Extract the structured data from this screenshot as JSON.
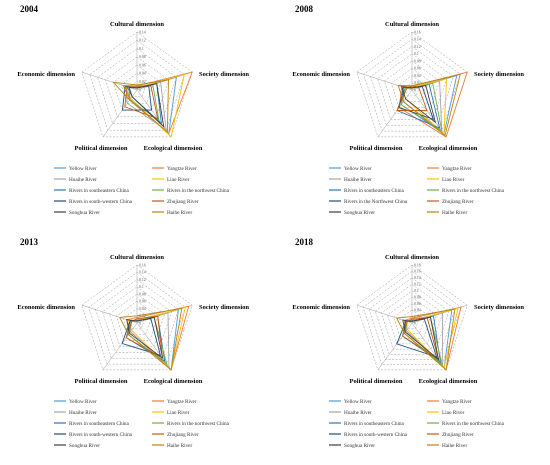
{
  "figure": {
    "dimensions": [
      "Cultural dimension",
      "Society dimension",
      "Ecological dimension",
      "Political dimension",
      "Economic dimension"
    ],
    "series_names": [
      "Yellow River",
      "Yangtze River",
      "Huaihe River",
      "Liao River",
      "Rivers in southeastern China",
      "Rivers in the northwest China",
      "Rivers in south-western China",
      "Zhujiang River",
      "Songhua River",
      "Haihe River"
    ],
    "colors": {
      "Yellow River": "#4e9bd6",
      "Yangtze River": "#ed7d31",
      "Huaihe River": "#a5a5a5",
      "Liao River": "#ffc000",
      "Rivers in southeastern China": "#2e75b6",
      "Rivers in the northwest China": "#70ad47",
      "Rivers in south-western China": "#1f4e79",
      "Rivers in the Northwest China": "#1f4e79",
      "Zhujiang River": "#c55a11",
      "Songhua River": "#404040",
      "Haihe River": "#b8860b"
    }
  },
  "chart_data": [
    {
      "type": "radar",
      "title": "2004",
      "axes": [
        "Cultural dimension",
        "Society dimension",
        "Ecological dimension",
        "Political dimension",
        "Economic dimension"
      ],
      "ticks": [
        "0",
        "0.02",
        "0.04",
        "0.06",
        "0.08",
        "0.1",
        "0.12",
        "0.14"
      ],
      "rmax": 0.14,
      "legend": [
        "Yellow River",
        "Yangtze River",
        "Huaihe River",
        "Liao River",
        "Rivers in southeastern China",
        "Rivers in the northwest China",
        "Rivers in south-western China",
        "Zhujiang River",
        "Songhua River",
        "Haihe River"
      ],
      "series": [
        {
          "name": "Yellow River",
          "values": [
            0.005,
            0.1,
            0.13,
            0.028,
            0.03
          ]
        },
        {
          "name": "Yangtze River",
          "values": [
            0.01,
            0.14,
            0.13,
            0.03,
            0.035
          ]
        },
        {
          "name": "Huaihe River",
          "values": [
            0.008,
            0.06,
            0.12,
            0.04,
            0.028
          ]
        },
        {
          "name": "Liao River",
          "values": [
            0.006,
            0.12,
            0.14,
            0.025,
            0.03
          ]
        },
        {
          "name": "Rivers in southeastern China",
          "values": [
            0.005,
            0.05,
            0.1,
            0.02,
            0.025
          ]
        },
        {
          "name": "Rivers in the northwest China",
          "values": [
            0.004,
            0.04,
            0.09,
            0.03,
            0.02
          ]
        },
        {
          "name": "Rivers in south-western China",
          "values": [
            0.006,
            0.03,
            0.06,
            0.06,
            0.03
          ]
        },
        {
          "name": "Zhujiang River",
          "values": [
            0.007,
            0.035,
            0.085,
            0.05,
            0.025
          ]
        },
        {
          "name": "Songhua River",
          "values": [
            0.005,
            0.05,
            0.11,
            0.02,
            0.02
          ]
        },
        {
          "name": "Haihe River",
          "values": [
            0.012,
            0.08,
            0.125,
            0.03,
            0.06
          ]
        }
      ]
    },
    {
      "type": "radar",
      "title": "2008",
      "axes": [
        "Cultural dimension",
        "Society dimension",
        "Ecological dimension",
        "Political dimension",
        "Economic dimension"
      ],
      "ticks": [
        "0",
        "0.02",
        "0.04",
        "0.06",
        "0.08",
        "0.1",
        "0.12",
        "0.14",
        "0.16"
      ],
      "rmax": 0.16,
      "legend": [
        "Yellow River",
        "Yangtze River",
        "Huaihe River",
        "Liao River",
        "Rivers in southeastern China",
        "Rivers in the northwest China",
        "Rivers in the Northwest China",
        "Zhujiang River",
        "Songhua River",
        "Haihe River"
      ],
      "series": [
        {
          "name": "Yellow River",
          "values": [
            0.006,
            0.13,
            0.15,
            0.05,
            0.02
          ]
        },
        {
          "name": "Yangtze River",
          "values": [
            0.01,
            0.16,
            0.16,
            0.06,
            0.03
          ]
        },
        {
          "name": "Huaihe River",
          "values": [
            0.005,
            0.08,
            0.14,
            0.04,
            0.025
          ]
        },
        {
          "name": "Liao River",
          "values": [
            0.007,
            0.1,
            0.15,
            0.03,
            0.03
          ]
        },
        {
          "name": "Rivers in southeastern China",
          "values": [
            0.005,
            0.05,
            0.13,
            0.07,
            0.02
          ]
        },
        {
          "name": "Rivers in the northwest China",
          "values": [
            0.004,
            0.06,
            0.14,
            0.05,
            0.02
          ]
        },
        {
          "name": "Rivers in the Northwest China",
          "values": [
            0.006,
            0.03,
            0.1,
            0.06,
            0.025
          ]
        },
        {
          "name": "Zhujiang River",
          "values": [
            0.012,
            0.02,
            0.07,
            0.07,
            0.015
          ]
        },
        {
          "name": "Songhua River",
          "values": [
            0.006,
            0.04,
            0.11,
            0.03,
            0.03
          ]
        },
        {
          "name": "Haihe River",
          "values": [
            0.012,
            0.14,
            0.155,
            0.04,
            0.04
          ]
        }
      ]
    },
    {
      "type": "radar",
      "title": "2013",
      "axes": [
        "Cultural dimension",
        "Society dimension",
        "Ecological dimension",
        "Political dimension",
        "Economic dimension"
      ],
      "ticks": [
        "0",
        "0.02",
        "0.04",
        "0.06",
        "0.08",
        "0.1",
        "0.12",
        "0.14",
        "0.16"
      ],
      "rmax": 0.16,
      "legend": [
        "Yellow River",
        "Yangtze River",
        "Huaihe River",
        "Liao River",
        "Rivers in southeastern China",
        "Rivers in the northwest China",
        "Rivers in south-western China",
        "Zhujiang River",
        "Songhua River",
        "Haihe River"
      ],
      "series": [
        {
          "name": "Yellow River",
          "values": [
            0.008,
            0.12,
            0.16,
            0.03,
            0.02
          ]
        },
        {
          "name": "Yangtze River",
          "values": [
            0.015,
            0.15,
            0.16,
            0.03,
            0.03
          ]
        },
        {
          "name": "Huaihe River",
          "values": [
            0.006,
            0.09,
            0.15,
            0.03,
            0.02
          ]
        },
        {
          "name": "Liao River",
          "values": [
            0.006,
            0.14,
            0.16,
            0.025,
            0.025
          ]
        },
        {
          "name": "Rivers in southeastern China",
          "values": [
            0.005,
            0.06,
            0.13,
            0.05,
            0.02
          ]
        },
        {
          "name": "Rivers in the northwest China",
          "values": [
            0.005,
            0.05,
            0.14,
            0.04,
            0.015
          ]
        },
        {
          "name": "Rivers in south-western China",
          "values": [
            0.006,
            0.04,
            0.11,
            0.07,
            0.02
          ]
        },
        {
          "name": "Zhujiang River",
          "values": [
            0.012,
            0.06,
            0.12,
            0.05,
            0.015
          ]
        },
        {
          "name": "Songhua River",
          "values": [
            0.005,
            0.05,
            0.12,
            0.035,
            0.03
          ]
        },
        {
          "name": "Haihe River",
          "values": [
            0.02,
            0.13,
            0.16,
            0.04,
            0.05
          ]
        }
      ]
    },
    {
      "type": "radar",
      "title": "2018",
      "axes": [
        "Cultural dimension",
        "Society dimension",
        "Ecological dimension",
        "Political dimension",
        "Economic dimension"
      ],
      "ticks": [
        "0",
        "0.02",
        "0.04",
        "0.06",
        "0.08",
        "0.1",
        "0.12",
        "0.14",
        "0.16",
        "0.18"
      ],
      "rmax": 0.18,
      "legend": [
        "Yellow River",
        "Yangtze River",
        "Huaihe River",
        "Liao River",
        "Rivers in southeastern China",
        "Rivers in the northwest China",
        "Rivers in south-western China",
        "Zhujiang River",
        "Songhua River",
        "Haihe River"
      ],
      "series": [
        {
          "name": "Yellow River",
          "values": [
            0.008,
            0.13,
            0.17,
            0.03,
            0.02
          ]
        },
        {
          "name": "Yangtze River",
          "values": [
            0.015,
            0.16,
            0.18,
            0.03,
            0.025
          ]
        },
        {
          "name": "Huaihe River",
          "values": [
            0.006,
            0.1,
            0.16,
            0.03,
            0.02
          ]
        },
        {
          "name": "Liao River",
          "values": [
            0.006,
            0.15,
            0.17,
            0.025,
            0.02
          ]
        },
        {
          "name": "Rivers in southeastern China",
          "values": [
            0.005,
            0.07,
            0.15,
            0.05,
            0.02
          ]
        },
        {
          "name": "Rivers in the northwest China",
          "values": [
            0.005,
            0.06,
            0.16,
            0.04,
            0.015
          ]
        },
        {
          "name": "Rivers in south-western China",
          "values": [
            0.006,
            0.04,
            0.13,
            0.08,
            0.02
          ]
        },
        {
          "name": "Zhujiang River",
          "values": [
            0.012,
            0.05,
            0.14,
            0.05,
            0.015
          ]
        },
        {
          "name": "Songhua River",
          "values": [
            0.005,
            0.06,
            0.14,
            0.035,
            0.03
          ]
        },
        {
          "name": "Haihe River",
          "values": [
            0.02,
            0.14,
            0.18,
            0.04,
            0.05
          ]
        }
      ]
    }
  ]
}
